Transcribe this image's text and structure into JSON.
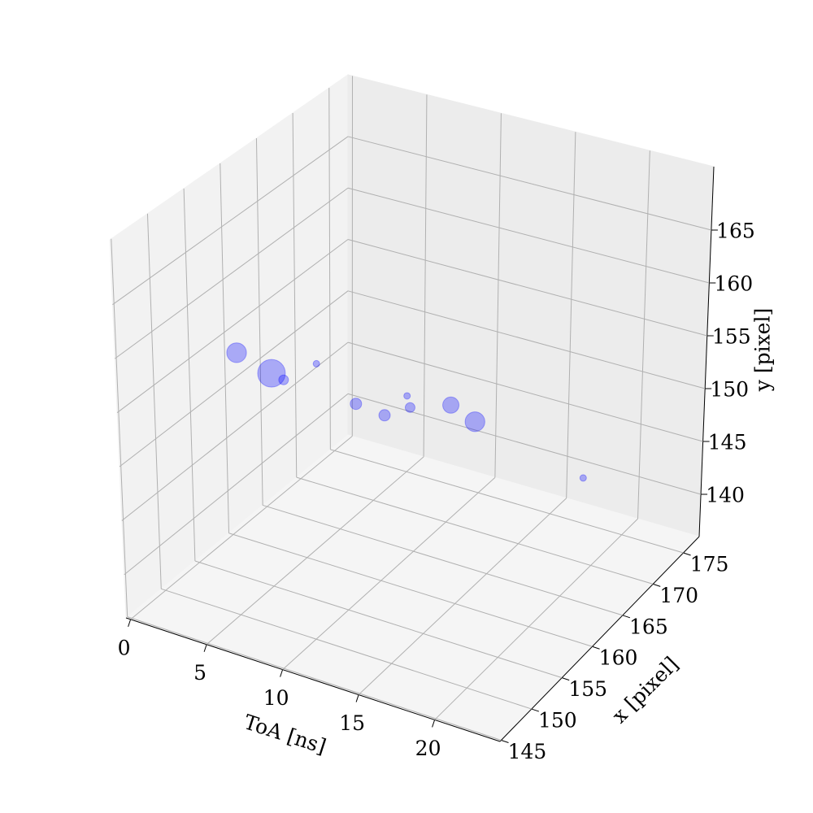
{
  "chart_data": {
    "type": "scatter3d",
    "xlabel": "ToA [ns]",
    "ylabel": "x [pixel]",
    "zlabel": "y [pixel]",
    "xlim": [
      -0.3,
      24.3
    ],
    "xticks": [
      0,
      5,
      10,
      15,
      20
    ],
    "ylim": [
      144.8,
      177.6
    ],
    "yticks": [
      145,
      150,
      155,
      160,
      165,
      170,
      175
    ],
    "zlim": [
      136,
      171
    ],
    "zticks": [
      140,
      145,
      150,
      155,
      160,
      165
    ],
    "grid": true,
    "series": [
      {
        "color": "#0000ff",
        "alpha": 0.3,
        "x": [
          0.5,
          2.8,
          3.6,
          5.8,
          8.4,
          10.3,
          11.8,
          12.0,
          14.7,
          16.3,
          23.5
        ],
        "y": [
          160,
          160,
          160,
          160,
          160,
          160,
          160,
          160,
          160,
          160,
          160
        ],
        "z": [
          153.4,
          152.4,
          152.1,
          154.5,
          151.8,
          151.5,
          153.9,
          152.9,
          154.2,
          153.3,
          151
        ],
        "sizes": [
          300,
          590,
          73,
          33,
          100,
          100,
          33,
          73,
          204,
          300,
          33
        ]
      }
    ]
  }
}
